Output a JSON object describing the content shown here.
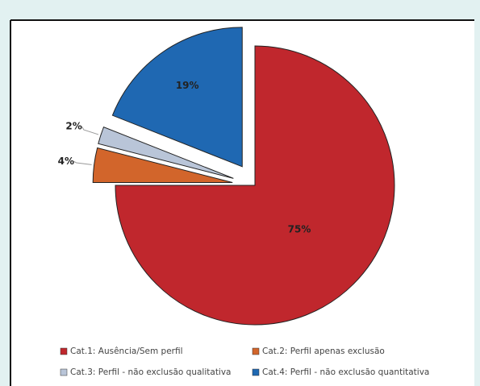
{
  "chart_data": {
    "type": "pie",
    "categories": [
      "Cat.1: Ausência/Sem perfil",
      "Cat.2: Perfil apenas exclusão",
      "Cat.3: Perfil - não exclusão qualitativa",
      "Cat.4: Perfil - não exclusão quantitativa"
    ],
    "values": [
      75,
      4,
      2,
      19
    ],
    "value_labels": [
      "75%",
      "4%",
      "2%",
      "19%"
    ],
    "colors": [
      "#c0272d",
      "#d2652b",
      "#b9c5d8",
      "#1f68b2"
    ]
  }
}
